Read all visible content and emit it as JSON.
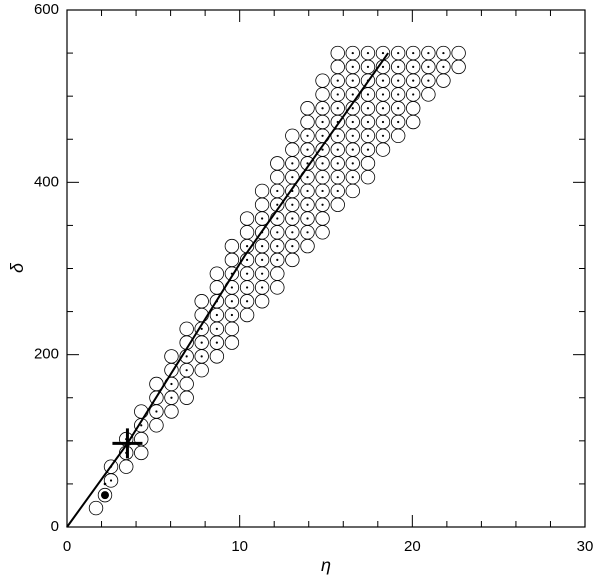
{
  "chart_data": {
    "type": "scatter",
    "xlabel": "η",
    "ylabel": "δ",
    "xlim": [
      0,
      30
    ],
    "ylim": [
      0,
      600
    ],
    "xticks": [
      0,
      10,
      20,
      30
    ],
    "yticks": [
      0,
      200,
      400,
      600
    ],
    "xminorticks": [
      2,
      4,
      6,
      8,
      12,
      14,
      16,
      18,
      22,
      24,
      26,
      28
    ],
    "yminorticks": [
      50,
      100,
      150,
      250,
      300,
      350,
      450,
      500,
      550
    ],
    "color": "#000000",
    "series": [
      {
        "marker": "open-circle",
        "x": [
          1.68,
          3.43,
          4.3,
          4.3,
          5.18,
          4.3,
          6.05,
          5.18,
          6.93,
          5.18,
          6.93,
          6.05,
          7.8,
          6.05,
          8.68,
          6.93,
          9.55,
          6.93,
          9.55,
          7.8,
          10.43,
          7.8,
          11.3,
          8.68,
          12.18,
          8.68,
          12.18,
          9.55,
          13.05,
          9.55,
          13.93,
          10.43,
          14.8,
          10.43,
          14.8,
          11.3,
          15.68,
          11.3,
          16.55,
          12.18,
          17.43,
          12.18,
          17.43,
          13.05,
          18.3,
          13.05,
          19.18,
          13.93,
          20.05,
          13.93,
          20.05,
          14.8,
          20.93,
          14.8,
          21.8,
          15.68,
          22.68,
          15.68,
          22.68
        ],
        "y": [
          22,
          70,
          86,
          102,
          118,
          134,
          134,
          150,
          150,
          166,
          166,
          182,
          182,
          198,
          198,
          214,
          214,
          230,
          230,
          246,
          246,
          262,
          262,
          278,
          278,
          294,
          294,
          310,
          310,
          326,
          326,
          342,
          342,
          358,
          358,
          374,
          374,
          390,
          390,
          406,
          406,
          422,
          422,
          438,
          438,
          454,
          454,
          470,
          470,
          486,
          486,
          502,
          502,
          518,
          518,
          534,
          534,
          550,
          550
        ]
      },
      {
        "marker": "dotted-circle",
        "x": [
          2.55,
          2.55,
          3.43,
          3.43,
          4.3,
          5.18,
          6.05,
          6.05,
          6.93,
          6.93,
          7.8,
          7.8,
          8.68,
          7.8,
          8.68,
          8.68,
          9.55,
          8.68,
          9.55,
          10.43,
          9.55,
          10.43,
          11.3,
          9.55,
          10.43,
          11.3,
          10.43,
          11.3,
          12.18,
          10.43,
          11.3,
          12.18,
          13.05,
          11.3,
          12.18,
          13.05,
          13.93,
          11.3,
          12.18,
          13.05,
          13.93,
          12.18,
          13.05,
          13.93,
          14.8,
          12.18,
          13.05,
          13.93,
          14.8,
          15.68,
          13.05,
          13.93,
          14.8,
          15.68,
          16.55,
          13.05,
          13.93,
          14.8,
          15.68,
          16.55,
          13.93,
          14.8,
          15.68,
          16.55,
          17.43,
          13.93,
          14.8,
          15.68,
          16.55,
          17.43,
          18.3,
          14.8,
          15.68,
          16.55,
          17.43,
          18.3,
          19.18,
          14.8,
          15.68,
          16.55,
          17.43,
          18.3,
          19.18,
          15.68,
          16.55,
          17.43,
          18.3,
          19.18,
          20.05,
          15.68,
          16.55,
          17.43,
          18.3,
          19.18,
          20.05,
          20.93,
          16.55,
          17.43,
          18.3,
          19.18,
          20.05,
          20.93,
          21.8,
          16.55,
          17.43,
          18.3,
          19.18,
          20.05,
          20.93,
          21.8
        ],
        "y": [
          54,
          70,
          86,
          102,
          118,
          134,
          150,
          166,
          182,
          198,
          198,
          214,
          214,
          230,
          230,
          246,
          246,
          262,
          262,
          262,
          278,
          278,
          278,
          294,
          294,
          294,
          310,
          310,
          310,
          326,
          326,
          326,
          326,
          342,
          342,
          342,
          342,
          358,
          358,
          358,
          358,
          374,
          374,
          374,
          374,
          390,
          390,
          390,
          390,
          390,
          406,
          406,
          406,
          406,
          406,
          422,
          422,
          422,
          422,
          422,
          438,
          438,
          438,
          438,
          438,
          454,
          454,
          454,
          454,
          454,
          454,
          470,
          470,
          470,
          470,
          470,
          470,
          486,
          486,
          486,
          486,
          486,
          486,
          502,
          502,
          502,
          502,
          502,
          502,
          518,
          518,
          518,
          518,
          518,
          518,
          518,
          534,
          534,
          534,
          534,
          534,
          534,
          534,
          550,
          550,
          550,
          550,
          550,
          550,
          550
        ]
      },
      {
        "marker": "filled-circle",
        "x": [
          2.2
        ],
        "y": [
          37
        ]
      },
      {
        "marker": "dot",
        "x": [
          2.2
        ],
        "y": [
          50
        ]
      },
      {
        "marker": "cross",
        "x": [
          3.5
        ],
        "y": [
          97
        ]
      },
      {
        "marker": "line",
        "x": [
          0,
          3.5,
          10.3,
          18.6
        ],
        "y": [
          0,
          97,
          315,
          550
        ]
      }
    ]
  }
}
